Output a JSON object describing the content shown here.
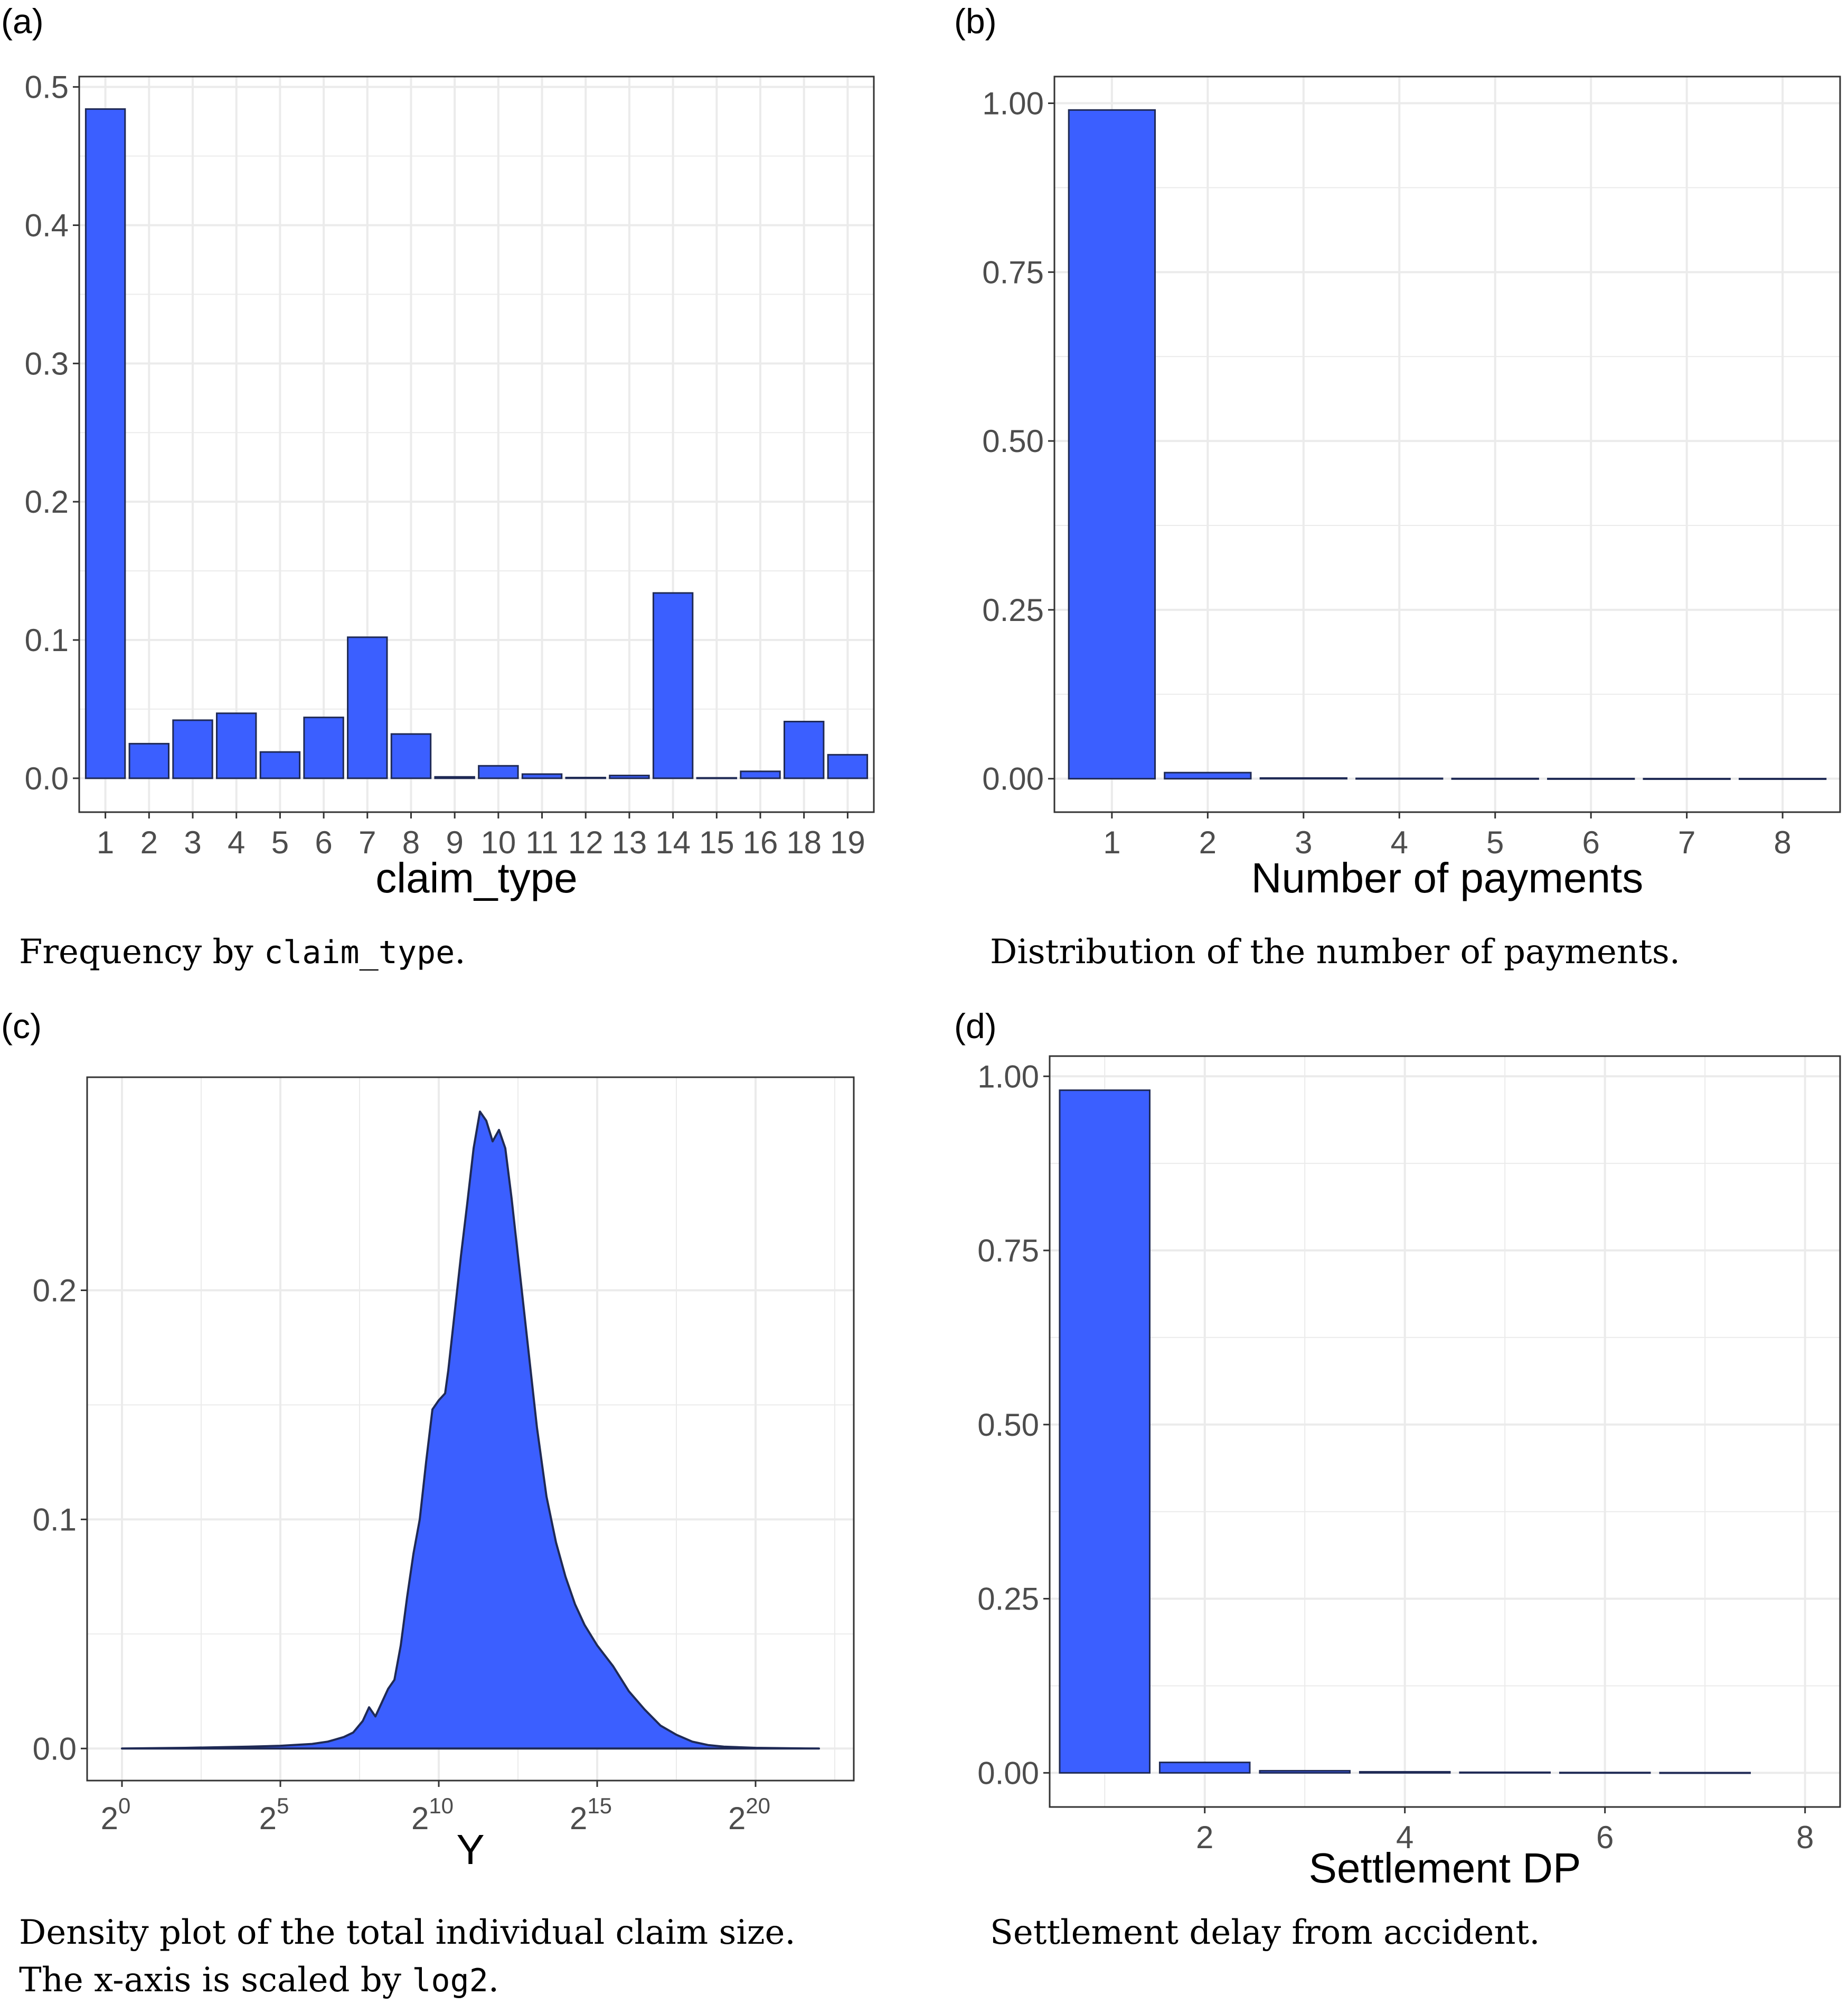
{
  "panels": {
    "a": {
      "label": "(a)",
      "caption_prefix": "Frequency by ",
      "caption_code": "claim_type",
      "caption_suffix": "."
    },
    "b": {
      "label": "(b)",
      "caption": "Distribution of the number of payments."
    },
    "c": {
      "label": "(c)",
      "caption_line1": "Density plot of the total individual claim size.",
      "caption_line2_prefix": "The x-axis is scaled by ",
      "caption_line2_code": "log2",
      "caption_line2_suffix": "."
    },
    "d": {
      "label": "(d)",
      "caption": "Settlement delay from accident."
    }
  },
  "colors": {
    "fill": "#3B5FFF",
    "stroke": "#1f2a55",
    "grid": "#ebebeb",
    "panel_border": "#333333"
  },
  "chart_data": [
    {
      "id": "a",
      "type": "bar",
      "title": "",
      "xlabel": "claim_type",
      "ylabel": "",
      "categories": [
        "1",
        "2",
        "3",
        "4",
        "5",
        "6",
        "7",
        "8",
        "9",
        "10",
        "11",
        "12",
        "13",
        "14",
        "15",
        "16",
        "18",
        "19"
      ],
      "values": [
        0.484,
        0.025,
        0.042,
        0.047,
        0.019,
        0.044,
        0.102,
        0.032,
        0.001,
        0.009,
        0.003,
        0.0005,
        0.002,
        0.134,
        0.0003,
        0.005,
        0.041,
        0.017
      ],
      "ylim": [
        -0.0245,
        0.5075
      ],
      "yticks": [
        0.0,
        0.1,
        0.2,
        0.3,
        0.4,
        0.5
      ],
      "ytick_labels": [
        "0.0",
        "0.1",
        "0.2",
        "0.3",
        "0.4",
        "0.5"
      ],
      "grid": true
    },
    {
      "id": "b",
      "type": "bar",
      "title": "",
      "xlabel": "Number of payments",
      "ylabel": "",
      "categories": [
        "1",
        "2",
        "3",
        "4",
        "5",
        "6",
        "7",
        "8"
      ],
      "values": [
        0.99,
        0.009,
        0.001,
        0.0005,
        0.0003,
        0.0002,
        0.0001,
        0.0001
      ],
      "ylim": [
        -0.0495,
        1.0395
      ],
      "yticks": [
        0.0,
        0.25,
        0.5,
        0.75,
        1.0
      ],
      "ytick_labels": [
        "0.00",
        "0.25",
        "0.50",
        "0.75",
        "1.00"
      ],
      "grid": true
    },
    {
      "id": "c",
      "type": "area",
      "title": "",
      "xlabel": "Y",
      "ylabel": "",
      "x_scale": "log2",
      "x": [
        0,
        2,
        4,
        5,
        6,
        6.5,
        7,
        7.3,
        7.6,
        7.8,
        8.0,
        8.2,
        8.4,
        8.6,
        8.8,
        9.0,
        9.2,
        9.4,
        9.6,
        9.8,
        10.0,
        10.2,
        10.3,
        10.5,
        10.7,
        10.9,
        11.1,
        11.3,
        11.5,
        11.7,
        11.9,
        12.1,
        12.3,
        12.5,
        12.7,
        12.9,
        13.1,
        13.4,
        13.7,
        14.0,
        14.3,
        14.6,
        15.0,
        15.5,
        16.0,
        16.5,
        17.0,
        17.5,
        18.0,
        18.5,
        19.0,
        20.0,
        21.0,
        22.0
      ],
      "y": [
        0,
        0.0003,
        0.0008,
        0.0012,
        0.002,
        0.003,
        0.005,
        0.007,
        0.012,
        0.018,
        0.014,
        0.02,
        0.026,
        0.03,
        0.045,
        0.066,
        0.085,
        0.1,
        0.125,
        0.148,
        0.152,
        0.155,
        0.165,
        0.19,
        0.215,
        0.238,
        0.262,
        0.278,
        0.274,
        0.265,
        0.27,
        0.262,
        0.24,
        0.215,
        0.19,
        0.165,
        0.14,
        0.11,
        0.09,
        0.075,
        0.063,
        0.054,
        0.045,
        0.036,
        0.025,
        0.017,
        0.01,
        0.006,
        0.003,
        0.0015,
        0.0008,
        0.0003,
        0.0001,
        0
      ],
      "xlim": [
        -1.1,
        23.1
      ],
      "ylim": [
        -0.014,
        0.293
      ],
      "xticks": [
        0,
        5,
        10,
        15,
        20
      ],
      "xtick_base": "2",
      "xtick_exponents": [
        "0",
        "5",
        "10",
        "15",
        "20"
      ],
      "yticks": [
        0.0,
        0.1,
        0.2
      ],
      "ytick_labels": [
        "0.0",
        "0.1",
        "0.2"
      ],
      "grid": true
    },
    {
      "id": "d",
      "type": "bar",
      "title": "",
      "xlabel": "Settlement DP",
      "ylabel": "",
      "x": [
        1,
        2,
        3,
        4,
        5,
        6,
        7
      ],
      "values": [
        0.98,
        0.015,
        0.003,
        0.0015,
        0.0008,
        0.0005,
        0.0003
      ],
      "xlim": [
        0.45,
        8.35
      ],
      "ylim": [
        -0.049,
        1.029
      ],
      "xticks": [
        2,
        4,
        6,
        8
      ],
      "xtick_labels": [
        "2",
        "4",
        "6",
        "8"
      ],
      "yticks": [
        0.0,
        0.25,
        0.5,
        0.75,
        1.0
      ],
      "ytick_labels": [
        "0.00",
        "0.25",
        "0.50",
        "0.75",
        "1.00"
      ],
      "grid": true
    }
  ]
}
